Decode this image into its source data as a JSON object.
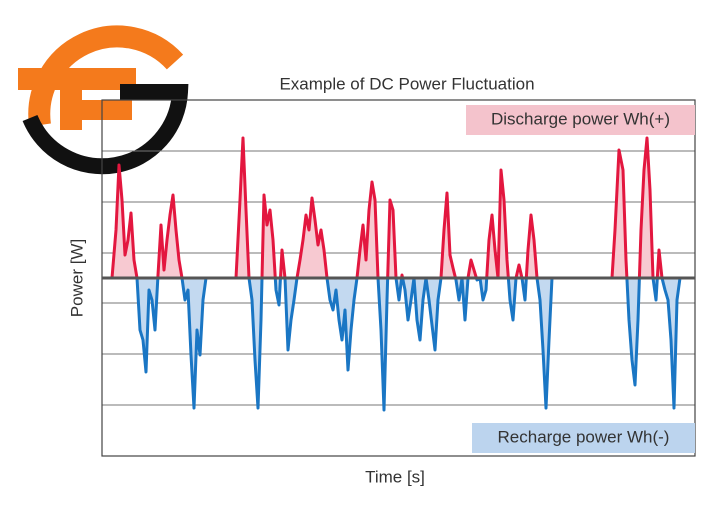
{
  "chart_data": {
    "type": "line",
    "title": "Example of DC Power Fluctuation",
    "x_label": "Time [s]",
    "y_label": "Power [W]",
    "annotations": [
      {
        "text": "Discharge power Wh(+)",
        "color": "#f4c3cc"
      },
      {
        "text": "Recharge power Wh(-)",
        "color": "#bcd4ee"
      }
    ],
    "positive_color": "#e3173f",
    "negative_color": "#1a76c4",
    "positive_fill": "#f7c9d1",
    "negative_fill": "#c3d9f0",
    "zero_color": "#555555",
    "xlim": [
      0,
      593
    ],
    "ylim": [
      -178,
      178
    ],
    "yticks": [
      -127,
      -76,
      -25,
      25,
      76,
      127
    ],
    "grid": true,
    "x": [
      0,
      10,
      14,
      17,
      20,
      23,
      26,
      29,
      32,
      35,
      38,
      41,
      44,
      47,
      50,
      53,
      56,
      59,
      62,
      65,
      68,
      71,
      74,
      77,
      80,
      83,
      86,
      89,
      92,
      95,
      98,
      101,
      104,
      134,
      138,
      141,
      144,
      147,
      150,
      153,
      156,
      159,
      162,
      165,
      168,
      171,
      174,
      177,
      180,
      183,
      186,
      189,
      192,
      195,
      198,
      201,
      204,
      207,
      210,
      213,
      216,
      219,
      222,
      225,
      228,
      231,
      234,
      237,
      240,
      243,
      246,
      249,
      252,
      255,
      258,
      261,
      264,
      267,
      270,
      273,
      276,
      279,
      282,
      285,
      288,
      291,
      294,
      297,
      300,
      303,
      306,
      309,
      312,
      315,
      318,
      321,
      324,
      327,
      330,
      333,
      336,
      339,
      342,
      345,
      348,
      351,
      354,
      357,
      360,
      363,
      366,
      369,
      372,
      375,
      378,
      381,
      384,
      387,
      390,
      393,
      396,
      399,
      402,
      405,
      408,
      411,
      414,
      417,
      420,
      423,
      426,
      429,
      432,
      435,
      438,
      441,
      444,
      447,
      450,
      510,
      513,
      517,
      521,
      524,
      527,
      530,
      533,
      536,
      539,
      542,
      545,
      548,
      551,
      554,
      557,
      560,
      563,
      566,
      569,
      572,
      575,
      578,
      593
    ],
    "values": [
      0,
      0,
      48,
      113,
      78,
      23,
      38,
      65,
      18,
      0,
      -52,
      -62,
      -94,
      -12,
      -22,
      -52,
      3,
      53,
      8,
      38,
      63,
      83,
      48,
      18,
      0,
      -22,
      -12,
      -77,
      -130,
      -52,
      -77,
      -22,
      0,
      0,
      78,
      140,
      68,
      0,
      -22,
      -82,
      -130,
      -42,
      83,
      53,
      68,
      38,
      -12,
      -27,
      28,
      0,
      -72,
      -42,
      -22,
      0,
      18,
      38,
      63,
      48,
      80,
      58,
      33,
      48,
      28,
      0,
      -22,
      -32,
      -12,
      -42,
      -62,
      -32,
      -92,
      -52,
      -22,
      0,
      28,
      53,
      18,
      68,
      96,
      78,
      0,
      -52,
      -132,
      -22,
      78,
      68,
      0,
      -22,
      3,
      -12,
      -42,
      -22,
      0,
      -42,
      -62,
      -22,
      0,
      -22,
      -47,
      -72,
      -22,
      0,
      48,
      85,
      23,
      10,
      -2,
      -22,
      0,
      -42,
      0,
      18,
      8,
      -2,
      0,
      -22,
      -12,
      38,
      63,
      28,
      0,
      108,
      78,
      18,
      -22,
      -42,
      0,
      13,
      0,
      -22,
      28,
      63,
      38,
      0,
      -22,
      -72,
      -130,
      -62,
      0,
      0,
      48,
      128,
      108,
      18,
      -42,
      -82,
      -107,
      -42,
      48,
      108,
      140,
      88,
      0,
      -22,
      28,
      0,
      -12,
      -22,
      -62,
      -130,
      -22,
      0,
      0
    ]
  }
}
